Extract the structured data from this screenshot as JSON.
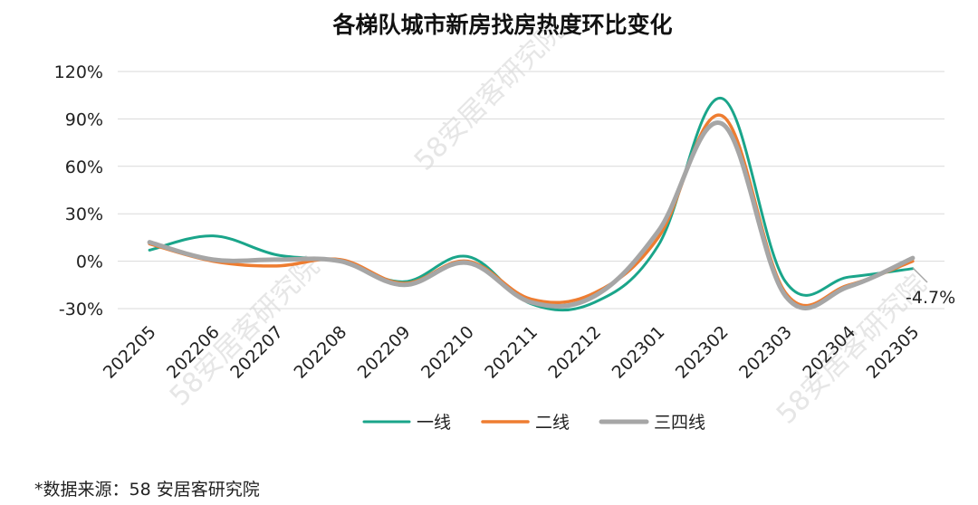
{
  "chart_data": {
    "type": "line",
    "title": "各梯队城市新房找房热度环比变化",
    "categories": [
      "202205",
      "202206",
      "202207",
      "202208",
      "202209",
      "202210",
      "202211",
      "202212",
      "202301",
      "202302",
      "202303",
      "202304",
      "202305"
    ],
    "y_tick_labels": [
      "120%",
      "90%",
      "60%",
      "30%",
      "0%",
      "-30%"
    ],
    "ylim": [
      -30,
      120
    ],
    "y_unit": "%",
    "grid": "horizontal",
    "legend_position": "bottom",
    "series": [
      {
        "name": "一线",
        "color": "#1aa58a",
        "values": [
          7,
          16,
          4,
          0,
          -13,
          3,
          -27,
          -26,
          10,
          103,
          -13,
          -10,
          -4.7
        ]
      },
      {
        "name": "二线",
        "color": "#ee7d31",
        "values": [
          11,
          0,
          -3,
          1,
          -14,
          0,
          -24,
          -20,
          15,
          92,
          -20,
          -15,
          0
        ]
      },
      {
        "name": "三四线",
        "color": "#a6a6a6",
        "values": [
          12,
          1,
          1,
          0,
          -15,
          -1,
          -26,
          -22,
          19,
          87,
          -22,
          -16,
          2
        ]
      }
    ],
    "annotation": "-4.7%"
  },
  "source": "*数据来源：58 安居客研究院",
  "watermark": "58安居客研究院"
}
